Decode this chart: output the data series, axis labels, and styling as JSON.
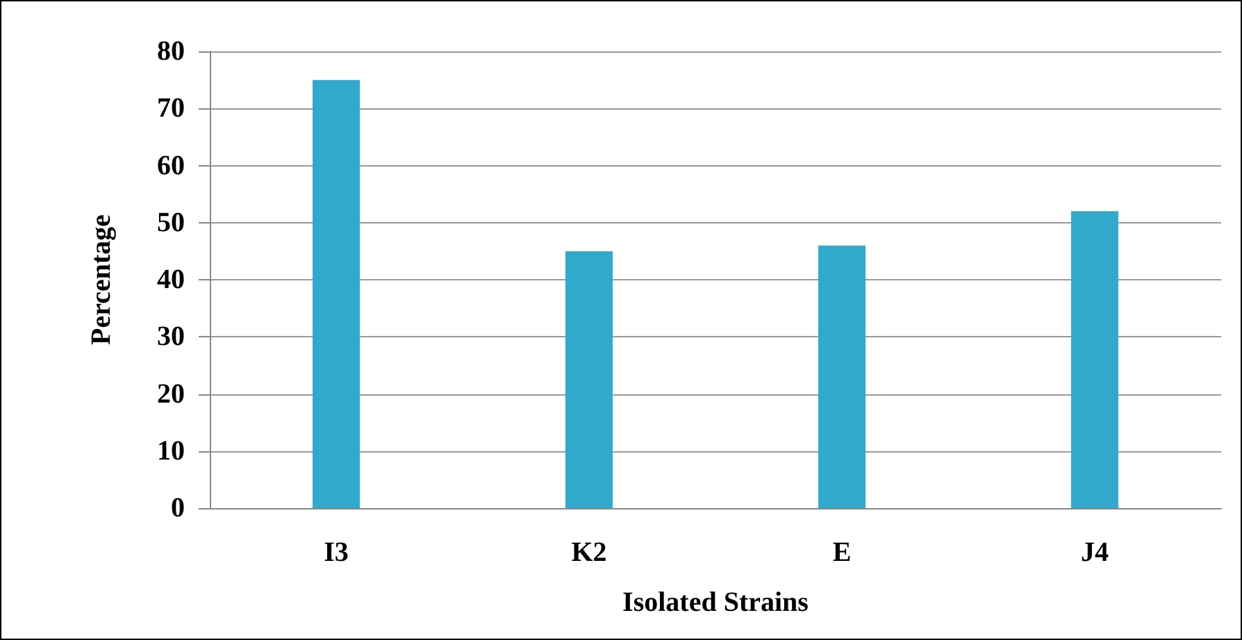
{
  "chart_data": {
    "type": "bar",
    "xlabel": "Isolated Strains",
    "ylabel": "Percentage",
    "categories": [
      "I3",
      "K2",
      "E",
      "J4"
    ],
    "values": [
      75,
      45,
      46,
      52
    ],
    "color": "#31a9cc",
    "ylim": [
      0,
      80
    ],
    "yticks": [
      0,
      10,
      20,
      30,
      40,
      50,
      60,
      70,
      80
    ],
    "grid": "y"
  }
}
